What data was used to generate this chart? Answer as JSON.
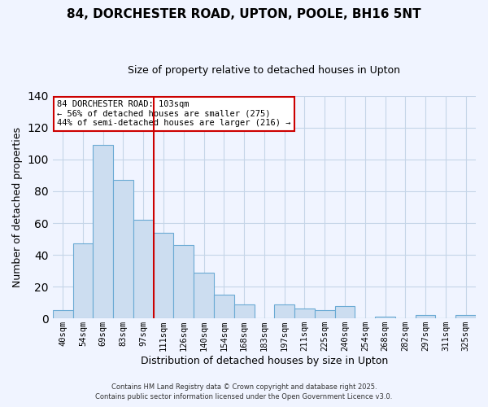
{
  "title1": "84, DORCHESTER ROAD, UPTON, POOLE, BH16 5NT",
  "title2": "Size of property relative to detached houses in Upton",
  "xlabel": "Distribution of detached houses by size in Upton",
  "ylabel": "Number of detached properties",
  "bar_color": "#ccddf0",
  "bar_edge_color": "#6aaad4",
  "bins": [
    "40sqm",
    "54sqm",
    "69sqm",
    "83sqm",
    "97sqm",
    "111sqm",
    "126sqm",
    "140sqm",
    "154sqm",
    "168sqm",
    "183sqm",
    "197sqm",
    "211sqm",
    "225sqm",
    "240sqm",
    "254sqm",
    "268sqm",
    "282sqm",
    "297sqm",
    "311sqm",
    "325sqm"
  ],
  "values": [
    5,
    47,
    109,
    87,
    62,
    54,
    46,
    29,
    15,
    9,
    0,
    9,
    6,
    5,
    8,
    0,
    1,
    0,
    2,
    0,
    2
  ],
  "vline_x_idx": 4.5,
  "vline_color": "#cc0000",
  "annotation_title": "84 DORCHESTER ROAD: 103sqm",
  "annotation_line2": "← 56% of detached houses are smaller (275)",
  "annotation_line3": "44% of semi-detached houses are larger (216) →",
  "annotation_box_color": "#ffffff",
  "annotation_box_edge_color": "#cc0000",
  "ylim": [
    0,
    140
  ],
  "yticks": [
    0,
    20,
    40,
    60,
    80,
    100,
    120,
    140
  ],
  "footer1": "Contains HM Land Registry data © Crown copyright and database right 2025.",
  "footer2": "Contains public sector information licensed under the Open Government Licence v3.0.",
  "background_color": "#f0f4ff",
  "grid_color": "#c5d5e8"
}
